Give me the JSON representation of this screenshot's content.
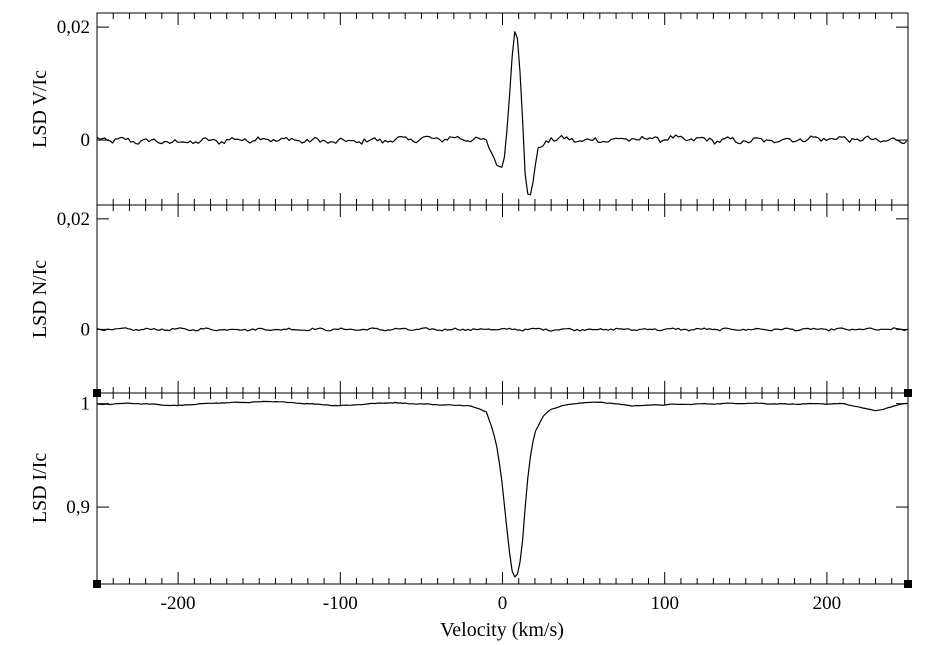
{
  "chart_data": [
    {
      "type": "line",
      "panel": "V",
      "ylabel": "LSD V/Ic",
      "xlim": [
        -250,
        250
      ],
      "ylim": [
        -0.0115,
        0.0225
      ],
      "yticks": [
        {
          "value": 0,
          "label": "0"
        },
        {
          "value": 0.02,
          "label": "0,02"
        }
      ],
      "x_ticks_labeled": false,
      "series": [
        {
          "noise_amplitude": 0.0006,
          "points": [
            [
              -250,
              0.0001
            ],
            [
              -200,
              -0.0004
            ],
            [
              -150,
              0.0002
            ],
            [
              -100,
              -0.0003
            ],
            [
              -50,
              0.0002
            ],
            [
              -20,
              0.0003
            ],
            [
              -10,
              -0.0004
            ],
            [
              -5,
              -0.003
            ],
            [
              -2,
              -0.0048
            ],
            [
              0,
              -0.0046
            ],
            [
              2,
              -0.0015
            ],
            [
              4,
              0.006
            ],
            [
              6,
              0.015
            ],
            [
              8,
              0.0205
            ],
            [
              10,
              0.017
            ],
            [
              12,
              0.006
            ],
            [
              14,
              -0.006
            ],
            [
              16,
              -0.0105
            ],
            [
              18,
              -0.009
            ],
            [
              20,
              -0.005
            ],
            [
              22,
              -0.002
            ],
            [
              25,
              -0.0007
            ],
            [
              30,
              0.0003
            ],
            [
              50,
              -0.0001
            ],
            [
              100,
              0.0003
            ],
            [
              150,
              -0.0002
            ],
            [
              200,
              0.0003
            ],
            [
              250,
              -0.0002
            ]
          ]
        }
      ]
    },
    {
      "type": "line",
      "panel": "N",
      "ylabel": "LSD N/Ic",
      "xlim": [
        -250,
        250
      ],
      "ylim": [
        -0.0115,
        0.0225
      ],
      "yticks": [
        {
          "value": 0,
          "label": "0"
        },
        {
          "value": 0.02,
          "label": "0,02"
        }
      ],
      "x_ticks_labeled": false,
      "series": [
        {
          "noise_amplitude": 0.00025,
          "points": [
            [
              -250,
              0.0
            ],
            [
              0,
              0.0
            ],
            [
              250,
              0.0
            ]
          ]
        }
      ]
    },
    {
      "type": "line",
      "panel": "I",
      "ylabel": "LSD I/Ic",
      "xlabel": "Velocity (km/s)",
      "xlim": [
        -250,
        250
      ],
      "ylim": [
        0.8256,
        1.0103
      ],
      "yticks": [
        {
          "value": 0.9,
          "label": "0,9"
        },
        {
          "value": 1.0,
          "label": "1"
        }
      ],
      "xticks": [
        {
          "value": -200,
          "label": "-200"
        },
        {
          "value": -100,
          "label": "-100"
        },
        {
          "value": 0,
          "label": "0"
        },
        {
          "value": 100,
          "label": "100"
        },
        {
          "value": 200,
          "label": "200"
        }
      ],
      "series": [
        {
          "noise_amplitude": 0.0004,
          "points": [
            [
              -250,
              0.999
            ],
            [
              -230,
              1.0005
            ],
            [
              -200,
              0.998
            ],
            [
              -180,
              1.0005
            ],
            [
              -140,
              1.002
            ],
            [
              -100,
              0.998
            ],
            [
              -70,
              1.001
            ],
            [
              -40,
              0.999
            ],
            [
              -20,
              0.998
            ],
            [
              -10,
              0.992
            ],
            [
              -6,
              0.975
            ],
            [
              -3,
              0.955
            ],
            [
              0,
              0.92
            ],
            [
              2,
              0.89
            ],
            [
              4,
              0.86
            ],
            [
              6,
              0.838
            ],
            [
              8,
              0.831
            ],
            [
              10,
              0.838
            ],
            [
              12,
              0.86
            ],
            [
              14,
              0.9
            ],
            [
              16,
              0.935
            ],
            [
              18,
              0.958
            ],
            [
              20,
              0.972
            ],
            [
              25,
              0.988
            ],
            [
              30,
              0.995
            ],
            [
              40,
              0.999
            ],
            [
              50,
              1.001
            ],
            [
              60,
              1.0015
            ],
            [
              80,
              0.998
            ],
            [
              100,
              0.999
            ],
            [
              150,
              1.0005
            ],
            [
              180,
              0.9995
            ],
            [
              210,
              1.0
            ],
            [
              230,
              0.993
            ],
            [
              240,
              0.997
            ],
            [
              250,
              1.001
            ]
          ]
        }
      ]
    }
  ]
}
